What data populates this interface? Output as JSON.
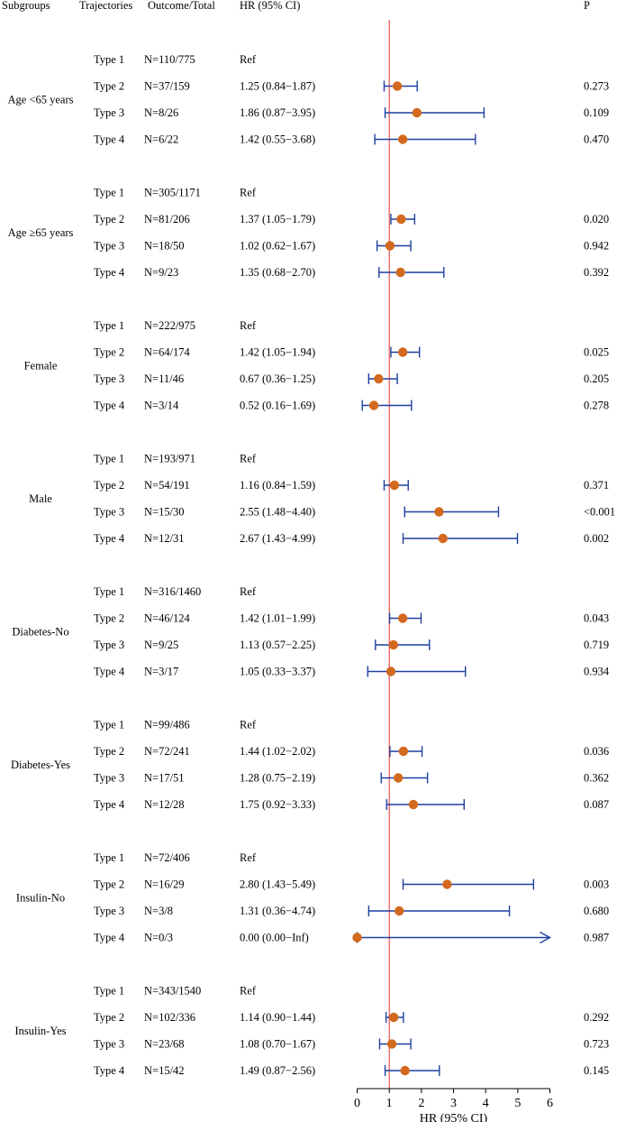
{
  "headers": {
    "subgroups": "Subgroups",
    "trajectories": "Trajectories",
    "outcome": "Outcome/Total",
    "hr": "HR (95% CI)",
    "p": "P"
  },
  "chart_data": {
    "type": "forest",
    "title": "",
    "xlabel": "HR (95% CI)",
    "xlim": [
      0,
      6
    ],
    "xticks": [
      0,
      1,
      2,
      3,
      4,
      5,
      6
    ],
    "reference_line": 1,
    "colors": {
      "point": "#D2691E",
      "ci": "#1F3F9F",
      "refline": "#E03030",
      "axis": "#000000"
    },
    "groups": [
      {
        "label": "Age <65 years",
        "rows": [
          {
            "type": "Type 1",
            "n": "N=110/775",
            "hr_text": "Ref",
            "p": "",
            "hr": null,
            "lo": null,
            "hi": null
          },
          {
            "type": "Type 2",
            "n": "N=37/159",
            "hr_text": "1.25 (0.84−1.87)",
            "p": "0.273",
            "hr": 1.25,
            "lo": 0.84,
            "hi": 1.87
          },
          {
            "type": "Type 3",
            "n": "N=8/26",
            "hr_text": "1.86 (0.87−3.95)",
            "p": "0.109",
            "hr": 1.86,
            "lo": 0.87,
            "hi": 3.95
          },
          {
            "type": "Type 4",
            "n": "N=6/22",
            "hr_text": "1.42 (0.55−3.68)",
            "p": "0.470",
            "hr": 1.42,
            "lo": 0.55,
            "hi": 3.68
          }
        ]
      },
      {
        "label": "Age ≥65 years",
        "rows": [
          {
            "type": "Type 1",
            "n": "N=305/1171",
            "hr_text": "Ref",
            "p": "",
            "hr": null,
            "lo": null,
            "hi": null
          },
          {
            "type": "Type 2",
            "n": "N=81/206",
            "hr_text": "1.37 (1.05−1.79)",
            "p": "0.020",
            "hr": 1.37,
            "lo": 1.05,
            "hi": 1.79
          },
          {
            "type": "Type 3",
            "n": "N=18/50",
            "hr_text": "1.02 (0.62−1.67)",
            "p": "0.942",
            "hr": 1.02,
            "lo": 0.62,
            "hi": 1.67
          },
          {
            "type": "Type 4",
            "n": "N=9/23",
            "hr_text": "1.35 (0.68−2.70)",
            "p": "0.392",
            "hr": 1.35,
            "lo": 0.68,
            "hi": 2.7
          }
        ]
      },
      {
        "label": "Female",
        "rows": [
          {
            "type": "Type 1",
            "n": "N=222/975",
            "hr_text": "Ref",
            "p": "",
            "hr": null,
            "lo": null,
            "hi": null
          },
          {
            "type": "Type 2",
            "n": "N=64/174",
            "hr_text": "1.42 (1.05−1.94)",
            "p": "0.025",
            "hr": 1.42,
            "lo": 1.05,
            "hi": 1.94
          },
          {
            "type": "Type 3",
            "n": "N=11/46",
            "hr_text": "0.67 (0.36−1.25)",
            "p": "0.205",
            "hr": 0.67,
            "lo": 0.36,
            "hi": 1.25
          },
          {
            "type": "Type 4",
            "n": "N=3/14",
            "hr_text": "0.52 (0.16−1.69)",
            "p": "0.278",
            "hr": 0.52,
            "lo": 0.16,
            "hi": 1.69
          }
        ]
      },
      {
        "label": "Male",
        "rows": [
          {
            "type": "Type 1",
            "n": "N=193/971",
            "hr_text": "Ref",
            "p": "",
            "hr": null,
            "lo": null,
            "hi": null
          },
          {
            "type": "Type 2",
            "n": "N=54/191",
            "hr_text": "1.16 (0.84−1.59)",
            "p": "0.371",
            "hr": 1.16,
            "lo": 0.84,
            "hi": 1.59
          },
          {
            "type": "Type 3",
            "n": "N=15/30",
            "hr_text": "2.55 (1.48−4.40)",
            "p": "<0.001",
            "hr": 2.55,
            "lo": 1.48,
            "hi": 4.4
          },
          {
            "type": "Type 4",
            "n": "N=12/31",
            "hr_text": "2.67 (1.43−4.99)",
            "p": "0.002",
            "hr": 2.67,
            "lo": 1.43,
            "hi": 4.99
          }
        ]
      },
      {
        "label": "Diabetes-No",
        "rows": [
          {
            "type": "Type 1",
            "n": "N=316/1460",
            "hr_text": "Ref",
            "p": "",
            "hr": null,
            "lo": null,
            "hi": null
          },
          {
            "type": "Type 2",
            "n": "N=46/124",
            "hr_text": "1.42 (1.01−1.99)",
            "p": "0.043",
            "hr": 1.42,
            "lo": 1.01,
            "hi": 1.99
          },
          {
            "type": "Type 3",
            "n": "N=9/25",
            "hr_text": "1.13 (0.57−2.25)",
            "p": "0.719",
            "hr": 1.13,
            "lo": 0.57,
            "hi": 2.25
          },
          {
            "type": "Type 4",
            "n": "N=3/17",
            "hr_text": "1.05 (0.33−3.37)",
            "p": "0.934",
            "hr": 1.05,
            "lo": 0.33,
            "hi": 3.37
          }
        ]
      },
      {
        "label": "Diabetes-Yes",
        "rows": [
          {
            "type": "Type 1",
            "n": "N=99/486",
            "hr_text": "Ref",
            "p": "",
            "hr": null,
            "lo": null,
            "hi": null
          },
          {
            "type": "Type 2",
            "n": "N=72/241",
            "hr_text": "1.44 (1.02−2.02)",
            "p": "0.036",
            "hr": 1.44,
            "lo": 1.02,
            "hi": 2.02
          },
          {
            "type": "Type 3",
            "n": "N=17/51",
            "hr_text": "1.28 (0.75−2.19)",
            "p": "0.362",
            "hr": 1.28,
            "lo": 0.75,
            "hi": 2.19
          },
          {
            "type": "Type 4",
            "n": "N=12/28",
            "hr_text": "1.75 (0.92−3.33)",
            "p": "0.087",
            "hr": 1.75,
            "lo": 0.92,
            "hi": 3.33
          }
        ]
      },
      {
        "label": "Insulin-No",
        "rows": [
          {
            "type": "Type 1",
            "n": "N=72/406",
            "hr_text": "Ref",
            "p": "",
            "hr": null,
            "lo": null,
            "hi": null
          },
          {
            "type": "Type 2",
            "n": "N=16/29",
            "hr_text": "2.80 (1.43−5.49)",
            "p": "0.003",
            "hr": 2.8,
            "lo": 1.43,
            "hi": 5.49
          },
          {
            "type": "Type 3",
            "n": "N=3/8",
            "hr_text": "1.31 (0.36−4.74)",
            "p": "0.680",
            "hr": 1.31,
            "lo": 0.36,
            "hi": 4.74
          },
          {
            "type": "Type 4",
            "n": "N=0/3",
            "hr_text": "0.00 (0.00−Inf)",
            "p": "0.987",
            "hr": 0.0,
            "lo": 0.0,
            "hi": "Inf"
          }
        ]
      },
      {
        "label": "Insulin-Yes",
        "rows": [
          {
            "type": "Type 1",
            "n": "N=343/1540",
            "hr_text": "Ref",
            "p": "",
            "hr": null,
            "lo": null,
            "hi": null
          },
          {
            "type": "Type 2",
            "n": "N=102/336",
            "hr_text": "1.14 (0.90−1.44)",
            "p": "0.292",
            "hr": 1.14,
            "lo": 0.9,
            "hi": 1.44
          },
          {
            "type": "Type 3",
            "n": "N=23/68",
            "hr_text": "1.08 (0.70−1.67)",
            "p": "0.723",
            "hr": 1.08,
            "lo": 0.7,
            "hi": 1.67
          },
          {
            "type": "Type 4",
            "n": "N=15/42",
            "hr_text": "1.49 (0.87−2.56)",
            "p": "0.145",
            "hr": 1.49,
            "lo": 0.87,
            "hi": 2.56
          }
        ]
      }
    ]
  }
}
